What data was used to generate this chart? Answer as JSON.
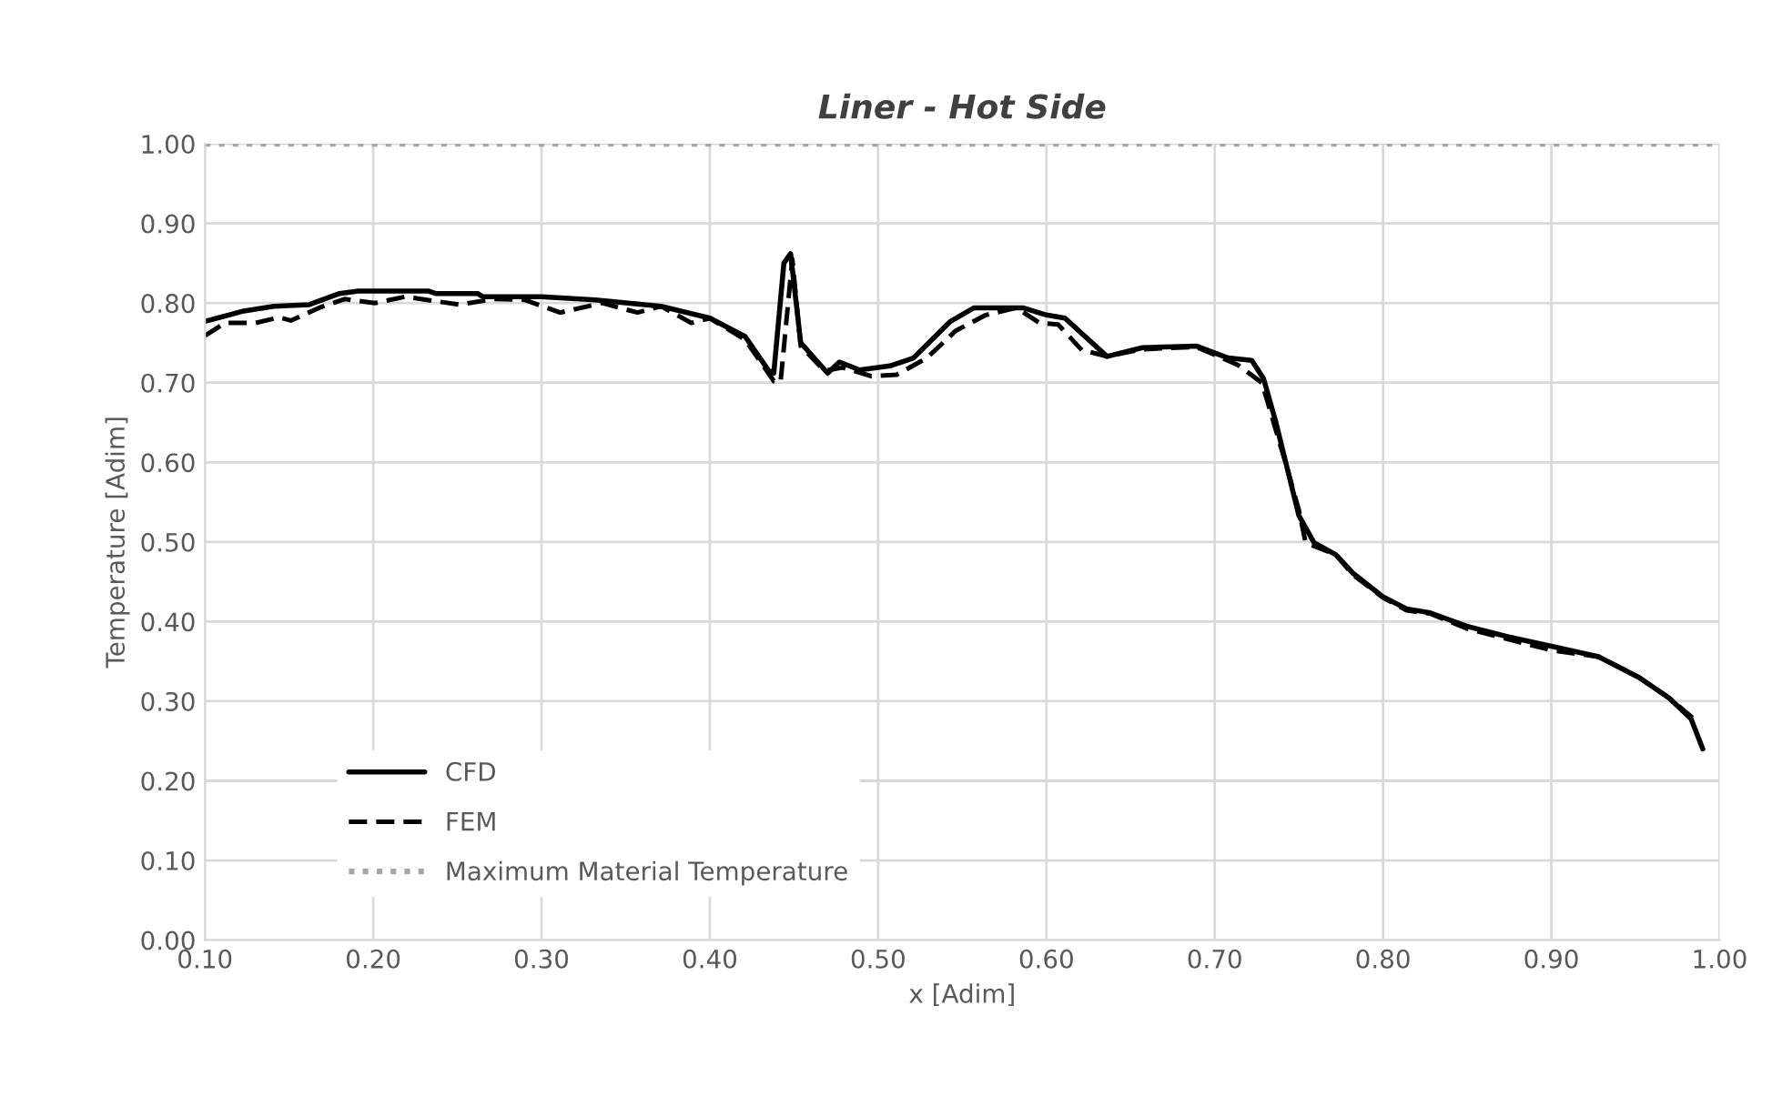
{
  "chart_data": {
    "type": "line",
    "title": "Liner - Hot Side",
    "xlabel": "x [Adim]",
    "ylabel": "Temperature [Adim]",
    "xlim": [
      0.1,
      1.0
    ],
    "xticks": [
      {
        "value": 0.1,
        "label": "0.10"
      },
      {
        "value": 0.2,
        "label": "0.20"
      },
      {
        "value": 0.3,
        "label": "0.30"
      },
      {
        "value": 0.4,
        "label": "0.40"
      },
      {
        "value": 0.5,
        "label": "0.50"
      },
      {
        "value": 0.6,
        "label": "0.60"
      },
      {
        "value": 0.7,
        "label": "0.70"
      },
      {
        "value": 0.8,
        "label": "0.80"
      },
      {
        "value": 0.9,
        "label": "0.90"
      },
      {
        "value": 1.0,
        "label": "1.00"
      }
    ],
    "ylim": [
      0.0,
      1.0
    ],
    "yticks": [
      {
        "value": 0.0,
        "label": "0.00"
      },
      {
        "value": 0.1,
        "label": "0.10"
      },
      {
        "value": 0.2,
        "label": "0.20"
      },
      {
        "value": 0.3,
        "label": "0.30"
      },
      {
        "value": 0.4,
        "label": "0.40"
      },
      {
        "value": 0.5,
        "label": "0.50"
      },
      {
        "value": 0.6,
        "label": "0.60"
      },
      {
        "value": 0.7,
        "label": "0.70"
      },
      {
        "value": 0.8,
        "label": "0.80"
      },
      {
        "value": 0.9,
        "label": "0.90"
      },
      {
        "value": 1.0,
        "label": "1.00"
      }
    ],
    "grid": true,
    "legend": "bottom left",
    "series": [
      {
        "name": "CFD",
        "color": "#000000",
        "line_style": "solid",
        "x": [
          0.1,
          0.123,
          0.141,
          0.162,
          0.18,
          0.191,
          0.233,
          0.237,
          0.262,
          0.265,
          0.3,
          0.332,
          0.371,
          0.4,
          0.421,
          0.435,
          0.438,
          0.444,
          0.448,
          0.454,
          0.47,
          0.477,
          0.489,
          0.507,
          0.521,
          0.543,
          0.557,
          0.586,
          0.6,
          0.611,
          0.636,
          0.657,
          0.689,
          0.708,
          0.722,
          0.729,
          0.736,
          0.743,
          0.75,
          0.759,
          0.772,
          0.782,
          0.8,
          0.814,
          0.828,
          0.85,
          0.874,
          0.9,
          0.928,
          0.952,
          0.97,
          0.983,
          0.99
        ],
        "values": [
          0.777,
          0.79,
          0.796,
          0.798,
          0.812,
          0.815,
          0.815,
          0.812,
          0.812,
          0.808,
          0.808,
          0.804,
          0.796,
          0.781,
          0.758,
          0.715,
          0.712,
          0.85,
          0.862,
          0.75,
          0.712,
          0.726,
          0.716,
          0.721,
          0.731,
          0.777,
          0.794,
          0.794,
          0.785,
          0.781,
          0.733,
          0.744,
          0.746,
          0.731,
          0.728,
          0.705,
          0.653,
          0.593,
          0.533,
          0.499,
          0.484,
          0.461,
          0.431,
          0.416,
          0.411,
          0.394,
          0.381,
          0.369,
          0.356,
          0.33,
          0.304,
          0.278,
          0.24
        ]
      },
      {
        "name": "FEM",
        "color": "#000000",
        "line_style": "dashed",
        "x": [
          0.1,
          0.112,
          0.13,
          0.144,
          0.151,
          0.169,
          0.183,
          0.201,
          0.219,
          0.251,
          0.272,
          0.29,
          0.311,
          0.336,
          0.357,
          0.371,
          0.389,
          0.4,
          0.421,
          0.438,
          0.442,
          0.449,
          0.454,
          0.468,
          0.479,
          0.496,
          0.511,
          0.529,
          0.546,
          0.564,
          0.582,
          0.596,
          0.607,
          0.621,
          0.636,
          0.657,
          0.689,
          0.714,
          0.728,
          0.742,
          0.75,
          0.754,
          0.772,
          0.782,
          0.8,
          0.814,
          0.828,
          0.85,
          0.874,
          0.9,
          0.928,
          0.952,
          0.97,
          0.988
        ],
        "values": [
          0.759,
          0.775,
          0.775,
          0.782,
          0.778,
          0.795,
          0.805,
          0.8,
          0.808,
          0.798,
          0.805,
          0.804,
          0.788,
          0.8,
          0.788,
          0.796,
          0.775,
          0.781,
          0.754,
          0.702,
          0.7,
          0.855,
          0.746,
          0.715,
          0.719,
          0.708,
          0.71,
          0.731,
          0.765,
          0.785,
          0.794,
          0.775,
          0.773,
          0.741,
          0.733,
          0.742,
          0.745,
          0.722,
          0.7,
          0.6,
          0.54,
          0.499,
          0.484,
          0.459,
          0.43,
          0.414,
          0.41,
          0.391,
          0.378,
          0.364,
          0.356,
          0.33,
          0.304,
          0.272
        ]
      },
      {
        "name": "Maximum Material Temperature",
        "color": "#a6a6a6",
        "line_style": "dotted",
        "x": [
          0.1,
          1.0
        ],
        "values": [
          1.0,
          1.0
        ]
      }
    ]
  }
}
